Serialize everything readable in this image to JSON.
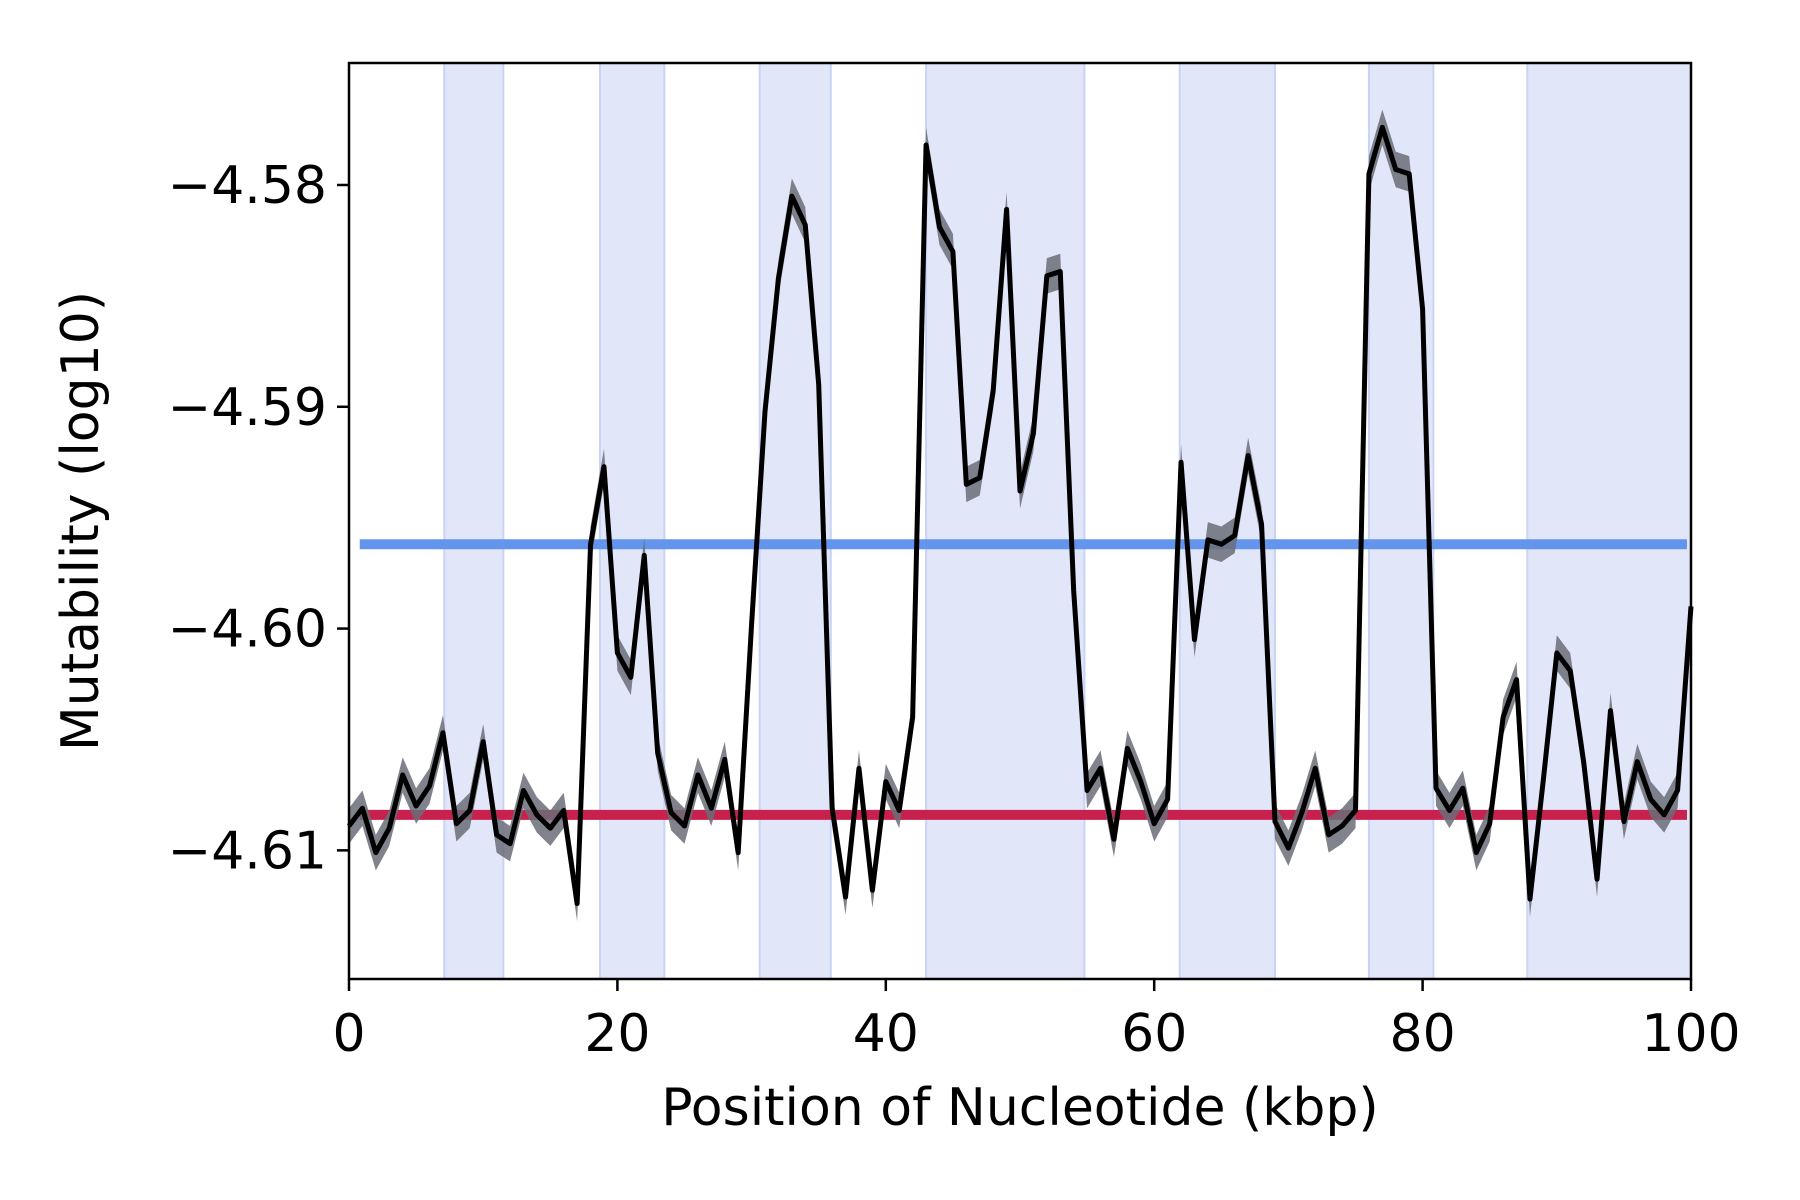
{
  "chart_data": {
    "type": "line",
    "title": "",
    "xlabel": "Position of Nucleotide (kbp)",
    "ylabel": "Mutability (log10)",
    "xlim": [
      0,
      100
    ],
    "ylim": [
      -4.6158,
      -4.5745
    ],
    "x_ticks": [
      0,
      20,
      40,
      60,
      80,
      100
    ],
    "x_tick_labels": [
      "0",
      "20",
      "40",
      "60",
      "80",
      "100"
    ],
    "y_ticks": [
      -4.58,
      -4.59,
      -4.6,
      -4.61
    ],
    "y_tick_labels": [
      "−4.58",
      "−4.59",
      "−4.60",
      "−4.61"
    ],
    "grid": false,
    "legend": "none",
    "shaded_regions": [
      {
        "start": 7.1,
        "end": 11.5
      },
      {
        "start": 18.7,
        "end": 23.5
      },
      {
        "start": 30.6,
        "end": 35.9
      },
      {
        "start": 43.0,
        "end": 54.8
      },
      {
        "start": 61.9,
        "end": 69.0
      },
      {
        "start": 76.0,
        "end": 80.8
      },
      {
        "start": 87.8,
        "end": 100.0
      }
    ],
    "shaded_color": "#e1e6f9",
    "shaded_edge_color": "#c9d3f4",
    "reference_lines": [
      {
        "y": -4.5962,
        "color": "#6495ed"
      },
      {
        "y": -4.6084,
        "color": "#c8214e"
      }
    ],
    "series": [
      {
        "color": "#000000",
        "band_color": "#6a6d78",
        "band_half_width": 0.0008,
        "x": [
          0.0,
          1.0,
          2.0,
          3.0,
          4.0,
          5.0,
          6.0,
          7.0,
          8.0,
          9.0,
          10.0,
          11.0,
          12.0,
          13.0,
          14.0,
          15.0,
          16.0,
          17.0,
          18.0,
          19.0,
          20.0,
          21.0,
          22.0,
          23.0,
          24.0,
          25.0,
          26.0,
          27.0,
          28.0,
          29.0,
          30.0,
          31.0,
          32.0,
          33.0,
          34.0,
          35.0,
          36.0,
          37.0,
          38.0,
          39.0,
          40.0,
          41.0,
          42.0,
          43.0,
          44.0,
          45.0,
          46.0,
          47.0,
          48.0,
          49.0,
          50.0,
          51.0,
          52.0,
          53.0,
          54.0,
          55.0,
          56.0,
          57.0,
          58.0,
          59.0,
          60.0,
          61.0,
          62.0,
          63.0,
          64.0,
          65.0,
          66.0,
          67.0,
          68.0,
          69.0,
          70.0,
          71.0,
          72.0,
          73.0,
          74.0,
          75.0,
          76.0,
          77.0,
          78.0,
          79.0,
          80.0,
          81.0,
          82.0,
          83.0,
          84.0,
          85.0,
          86.0,
          87.0,
          88.0,
          89.0,
          90.0,
          91.0,
          92.0,
          93.0,
          94.0,
          95.0,
          96.0,
          97.0,
          98.0,
          99.0,
          100.0
        ],
        "values": [
          -4.6089,
          -4.6081,
          -4.6101,
          -4.609,
          -4.6066,
          -4.608,
          -4.6071,
          -4.6047,
          -4.6088,
          -4.6082,
          -4.6051,
          -4.6093,
          -4.6097,
          -4.6073,
          -4.6084,
          -4.609,
          -4.6082,
          -4.6124,
          -4.5962,
          -4.5927,
          -4.6011,
          -4.6022,
          -4.5967,
          -4.6056,
          -4.6083,
          -4.6089,
          -4.6066,
          -4.6081,
          -4.6059,
          -4.6101,
          -4.5998,
          -4.5902,
          -4.5842,
          -4.5805,
          -4.5818,
          -4.589,
          -4.6081,
          -4.6121,
          -4.6063,
          -4.6118,
          -4.6069,
          -4.6082,
          -4.604,
          -4.5782,
          -4.5819,
          -4.583,
          -4.5935,
          -4.5932,
          -4.5893,
          -4.5811,
          -4.5938,
          -4.5912,
          -4.5841,
          -4.5839,
          -4.5983,
          -4.6073,
          -4.6063,
          -4.6095,
          -4.6054,
          -4.6069,
          -4.6088,
          -4.6077,
          -4.5925,
          -4.6005,
          -4.596,
          -4.5962,
          -4.5958,
          -4.5922,
          -4.5953,
          -4.6087,
          -4.6099,
          -4.6083,
          -4.6063,
          -4.6093,
          -4.6089,
          -4.6082,
          -4.5795,
          -4.5774,
          -4.5793,
          -4.5795,
          -4.5856,
          -4.6072,
          -4.6082,
          -4.6072,
          -4.6101,
          -4.6088,
          -4.604,
          -4.6023,
          -4.6122,
          -4.6068,
          -4.6011,
          -4.6019,
          -4.606,
          -4.6113,
          -4.6037,
          -4.6087,
          -4.606,
          -4.6077,
          -4.6084,
          -4.6073,
          -4.599
        ]
      }
    ]
  }
}
